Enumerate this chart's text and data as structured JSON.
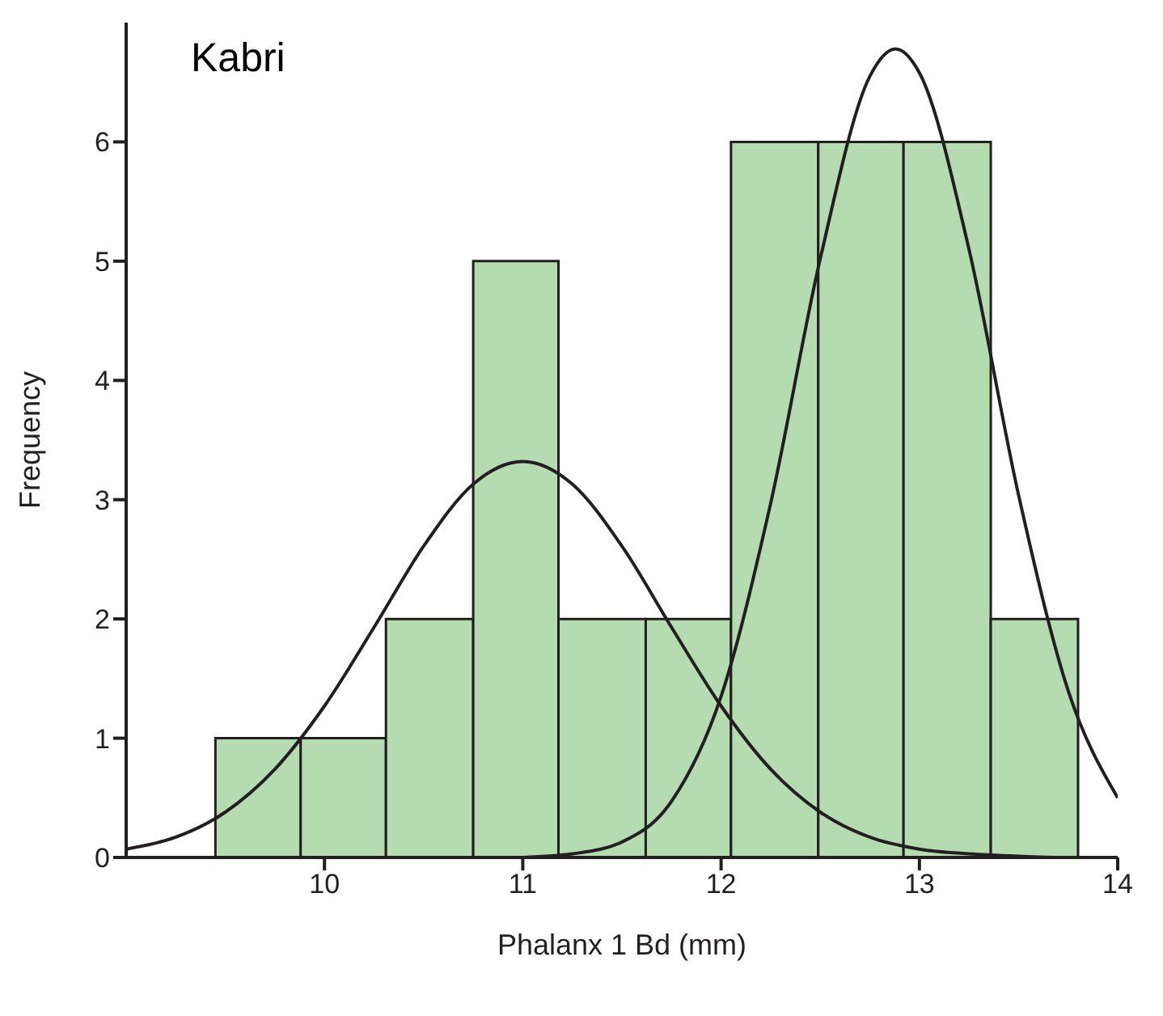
{
  "chart_data": {
    "type": "histogram",
    "title": "Kabri",
    "xlabel": "Phalanx 1 Bd (mm)",
    "ylabel": "Frequency",
    "bins": [
      9.45,
      9.88,
      10.31,
      10.75,
      11.18,
      11.62,
      12.05,
      12.49,
      12.92,
      13.36,
      13.8
    ],
    "values": [
      1,
      1,
      2,
      5,
      2,
      2,
      6,
      6,
      6,
      2
    ],
    "color": "#b5dcb1",
    "series": [
      {
        "type": "line",
        "color": "#231f20",
        "x": [
          9,
          9.25,
          9.5,
          9.75,
          10,
          10.25,
          10.5,
          10.75,
          11,
          11.25,
          11.5,
          11.75,
          12,
          12.25,
          12.5,
          12.75,
          13,
          13.25,
          13.5,
          13.75,
          14
        ],
        "values": [
          0.07,
          0.17,
          0.38,
          0.74,
          1.27,
          1.93,
          2.61,
          3.13,
          3.32,
          3.13,
          2.61,
          1.93,
          1.27,
          0.74,
          0.38,
          0.17,
          0.07,
          0.03,
          0.01,
          0,
          0
        ]
      },
      {
        "type": "line",
        "color": "#231f20",
        "x": [
          11,
          11.25,
          11.5,
          11.75,
          12,
          12.25,
          12.5,
          12.75,
          12.88,
          13,
          13.25,
          13.5,
          13.75,
          14
        ],
        "values": [
          0,
          0.03,
          0.13,
          0.47,
          1.35,
          2.97,
          5.02,
          6.55,
          6.78,
          6.58,
          5.1,
          3.04,
          1.4,
          0.5
        ]
      }
    ],
    "xlim": [
      9,
      14
    ],
    "xticks": [
      10,
      11,
      12,
      13,
      14
    ],
    "ylim": [
      0,
      7
    ],
    "yticks": [
      0,
      1,
      2,
      3,
      4,
      5,
      6
    ],
    "grid": false
  }
}
